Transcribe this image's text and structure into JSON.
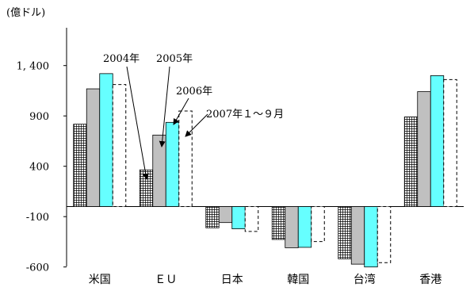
{
  "chart_data": {
    "type": "bar",
    "unit_label": "(億ドル)",
    "categories": [
      "米国",
      "ＥＵ",
      "日本",
      "韓国",
      "台湾",
      "香港"
    ],
    "series": [
      {
        "name": "2004年",
        "values": [
          818,
          364,
          -211,
          -327,
          -519,
          890
        ],
        "pattern": "grid",
        "color": "#ffffff"
      },
      {
        "name": "2005年",
        "values": [
          1169,
          710,
          -159,
          -409,
          -572,
          1141
        ],
        "pattern": "solid",
        "color": "#c0c0c0"
      },
      {
        "name": "2006年",
        "values": [
          1320,
          836,
          -221,
          -405,
          -600,
          1300
        ],
        "pattern": "solid",
        "color": "#66ffff"
      },
      {
        "name": "2007年１～９月",
        "values": [
          1212,
          949,
          -247,
          -347,
          -557,
          1261
        ],
        "pattern": "dashed",
        "color": "#ffffff"
      }
    ],
    "yticks": [
      -600,
      -100,
      400,
      900,
      1400
    ],
    "ytick_labels": [
      "-600",
      "-100",
      "400",
      "900",
      "1, 400"
    ],
    "ylim": [
      -600,
      1800
    ],
    "grid": false,
    "legend": "none"
  }
}
